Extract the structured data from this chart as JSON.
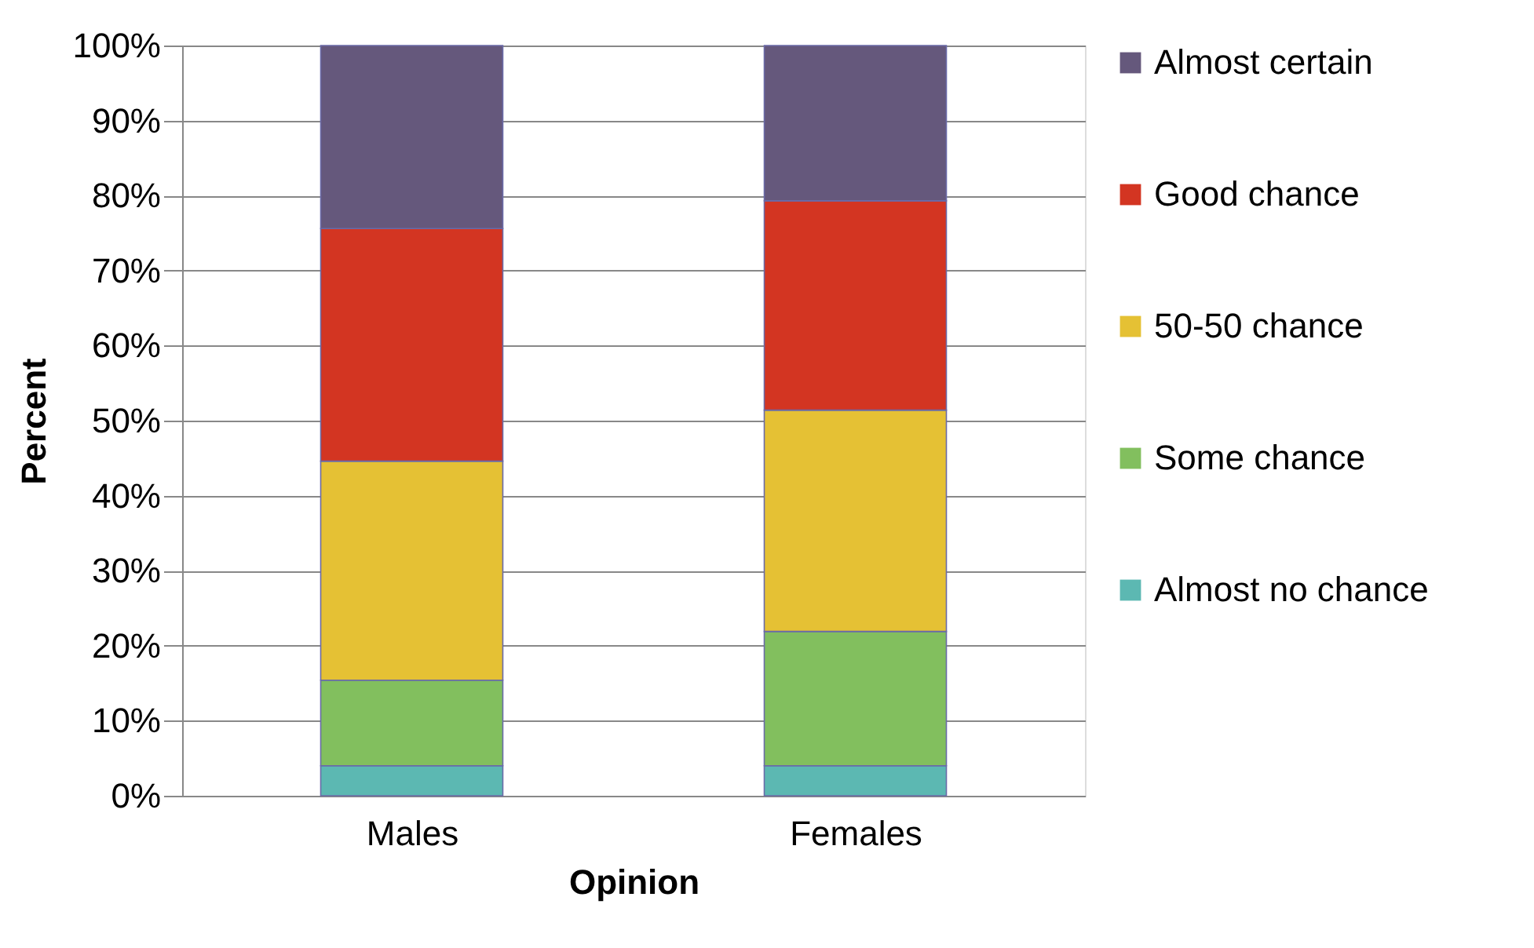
{
  "chart_data": {
    "type": "bar",
    "stacked": true,
    "xlabel": "Opinion",
    "ylabel": "Percent",
    "categories": [
      "Males",
      "Females"
    ],
    "series": [
      {
        "name": "Almost no chance",
        "color": "#5cb8b2",
        "values": [
          4,
          4
        ]
      },
      {
        "name": "Some chance",
        "color": "#82bf5e",
        "values": [
          11.4,
          17.9
        ]
      },
      {
        "name": "50-50 chance",
        "color": "#e5c134",
        "values": [
          29.2,
          29.5
        ]
      },
      {
        "name": "Good chance",
        "color": "#d33522",
        "values": [
          31,
          27.9
        ]
      },
      {
        "name": "Almost certain",
        "color": "#65587c",
        "values": [
          24.4,
          20.7
        ]
      }
    ],
    "ylim": [
      0,
      100
    ],
    "yticks": [
      {
        "value": 0,
        "label": "0%"
      },
      {
        "value": 10,
        "label": "10%"
      },
      {
        "value": 20,
        "label": "20%"
      },
      {
        "value": 30,
        "label": "30%"
      },
      {
        "value": 40,
        "label": "40%"
      },
      {
        "value": 50,
        "label": "50%"
      },
      {
        "value": 60,
        "label": "60%"
      },
      {
        "value": 70,
        "label": "70%"
      },
      {
        "value": 80,
        "label": "80%"
      },
      {
        "value": 90,
        "label": "90%"
      },
      {
        "value": 100,
        "label": "100%"
      }
    ],
    "grid": "y",
    "legend": "right"
  }
}
